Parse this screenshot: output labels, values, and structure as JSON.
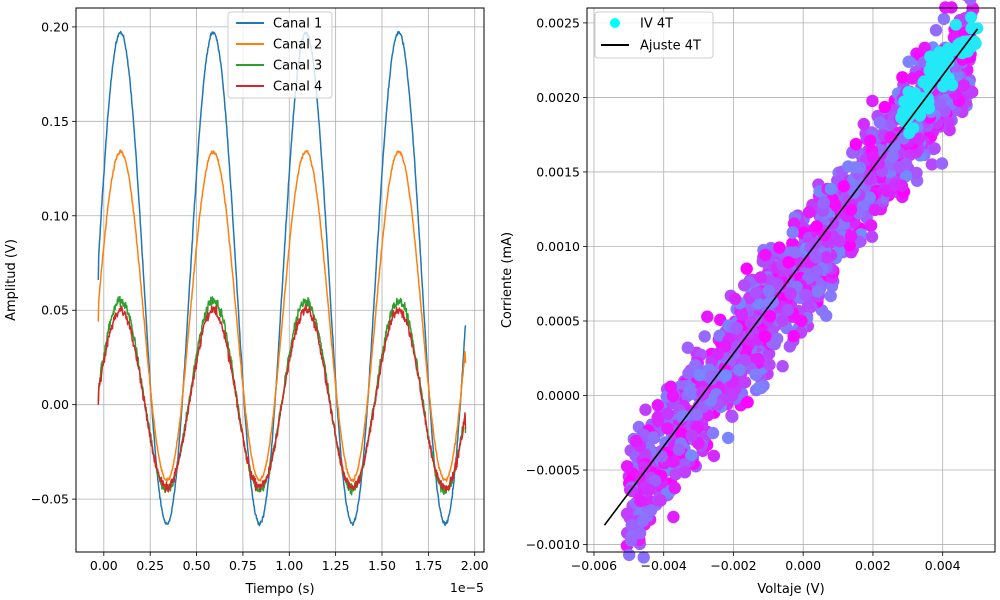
{
  "chart_data": [
    {
      "type": "line",
      "xlabel": "Tiempo (s)",
      "ylabel": "Amplitud (V)",
      "x_offset_label": "1e−5",
      "xlim": [
        -0.15,
        2.05
      ],
      "ylim": [
        -0.078,
        0.21
      ],
      "xticks": [
        "0.00",
        "0.25",
        "0.50",
        "0.75",
        "1.00",
        "1.25",
        "1.50",
        "1.75",
        "2.00"
      ],
      "xtick_values": [
        0,
        0.25,
        0.5,
        0.75,
        1.0,
        1.25,
        1.5,
        1.75,
        2.0
      ],
      "yticks": [
        "−0.05",
        "0.00",
        "0.05",
        "0.10",
        "0.15",
        "0.20"
      ],
      "ytick_values": [
        -0.05,
        0,
        0.05,
        0.1,
        0.15,
        0.2
      ],
      "grid": true,
      "legend_position": "top-center",
      "series": [
        {
          "name": "Canal 1",
          "color": "#1f77b4",
          "x_start": -0.03,
          "x_end": 1.95,
          "period": 0.5,
          "peak_x": 0.09,
          "center": 0.067,
          "amplitude": 0.13,
          "start_value": 0.066,
          "end_value": 0.042
        },
        {
          "name": "Canal 2",
          "color": "#ff7f0e",
          "x_start": -0.03,
          "x_end": 1.95,
          "period": 0.5,
          "peak_x": 0.09,
          "center": 0.047,
          "amplitude": 0.087,
          "start_value": 0.044,
          "end_value": 0.022
        },
        {
          "name": "Canal 3",
          "color": "#2ca02c",
          "x_start": -0.03,
          "x_end": 1.95,
          "period": 0.5,
          "peak_x": 0.09,
          "center": 0.005,
          "amplitude": 0.05,
          "start_value": 0.001,
          "end_value": -0.015
        },
        {
          "name": "Canal 4",
          "color": "#d62728",
          "x_start": -0.03,
          "x_end": 1.95,
          "period": 0.5,
          "peak_x": 0.09,
          "center": 0.003,
          "amplitude": 0.047,
          "start_value": 0.0,
          "end_value": -0.013
        }
      ]
    },
    {
      "type": "scatter",
      "xlabel": "Voltaje (V)",
      "ylabel": "Corriente (mA)",
      "xlim": [
        -0.0062,
        0.0055
      ],
      "ylim": [
        -0.00105,
        0.0026
      ],
      "xticks": [
        "−0.006",
        "−0.004",
        "−0.002",
        "0.000",
        "0.002",
        "0.004"
      ],
      "xtick_values": [
        -0.006,
        -0.004,
        -0.002,
        0.0,
        0.002,
        0.004
      ],
      "yticks": [
        "−0.0010",
        "−0.0005",
        "0.0000",
        "0.0005",
        "0.0010",
        "0.0015",
        "0.0020",
        "0.0025"
      ],
      "ytick_values": [
        -0.001,
        -0.0005,
        0.0,
        0.0005,
        0.001,
        0.0015,
        0.002,
        0.0025
      ],
      "grid": true,
      "legend_position": "top-left",
      "series": [
        {
          "name": "IV 4T",
          "kind": "scatter",
          "colormap": "cool",
          "x_range": [
            -0.0056,
            0.0052
          ],
          "slope": 0.3115,
          "intercept": 0.00085
        },
        {
          "name": "Ajuste 4T",
          "kind": "line",
          "color": "#000000",
          "x": [
            -0.0057,
            0.005
          ],
          "y": [
            -0.00087,
            0.00246
          ]
        }
      ]
    }
  ]
}
